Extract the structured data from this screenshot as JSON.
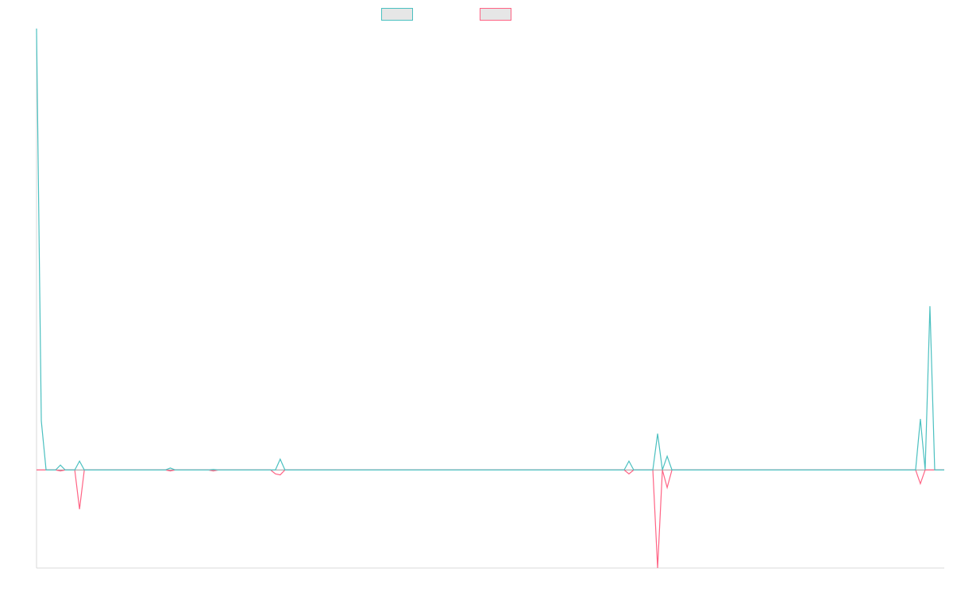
{
  "colors": {
    "series1": "#4bc0c0",
    "series2": "#ff6384",
    "axis": "#d9d9d9",
    "baseline": "#9e9e9e",
    "legend_fill": "#e6e6e6"
  },
  "legend": {
    "show": true,
    "placement": "top-center"
  },
  "chart_data": {
    "type": "line",
    "title": "",
    "xlabel": "",
    "ylabel": "",
    "grid": false,
    "ylim": [
      -100,
      450
    ],
    "series": [
      {
        "color": "#4bc0c0",
        "points": [
          [
            0,
            450
          ],
          [
            1,
            50
          ],
          [
            2,
            0
          ],
          [
            3,
            0
          ],
          [
            4,
            0
          ],
          [
            5,
            5
          ],
          [
            6,
            0
          ],
          [
            7,
            0
          ],
          [
            8,
            0
          ],
          [
            9,
            9
          ],
          [
            10,
            0
          ],
          [
            27,
            0
          ],
          [
            28,
            2
          ],
          [
            29,
            0
          ],
          [
            36,
            0
          ],
          [
            37,
            0.5
          ],
          [
            38,
            0
          ],
          [
            50,
            0
          ],
          [
            51,
            11
          ],
          [
            52,
            0
          ],
          [
            123,
            0
          ],
          [
            124,
            9
          ],
          [
            125,
            0
          ],
          [
            129,
            0
          ],
          [
            130,
            37
          ],
          [
            131,
            0
          ],
          [
            132,
            14
          ],
          [
            133,
            0
          ],
          [
            184,
            0
          ],
          [
            185,
            52
          ],
          [
            186,
            0
          ],
          [
            187,
            167
          ],
          [
            188,
            0
          ],
          [
            190,
            0
          ]
        ]
      },
      {
        "color": "#ff6384",
        "points": [
          [
            0,
            0
          ],
          [
            4,
            0
          ],
          [
            5,
            -1
          ],
          [
            6,
            0
          ],
          [
            8,
            0
          ],
          [
            9,
            -40
          ],
          [
            10,
            0
          ],
          [
            27,
            0
          ],
          [
            28,
            -1
          ],
          [
            29,
            0
          ],
          [
            36,
            0
          ],
          [
            37,
            -1
          ],
          [
            38,
            0
          ],
          [
            49,
            0
          ],
          [
            50,
            -4
          ],
          [
            51,
            -5
          ],
          [
            52,
            0
          ],
          [
            123,
            0
          ],
          [
            124,
            -4
          ],
          [
            125,
            0
          ],
          [
            129,
            0
          ],
          [
            130,
            -100
          ],
          [
            131,
            0
          ],
          [
            132,
            -18
          ],
          [
            133,
            0
          ],
          [
            184,
            0
          ],
          [
            185,
            -14
          ],
          [
            186,
            0
          ],
          [
            190,
            0
          ]
        ]
      }
    ]
  }
}
